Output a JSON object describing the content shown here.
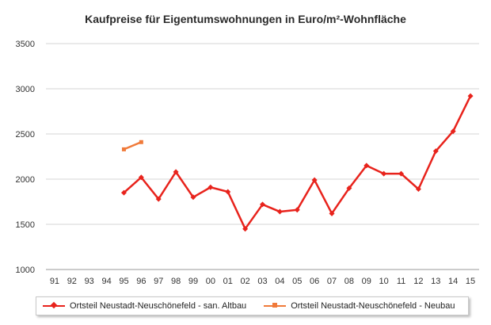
{
  "chart_data": {
    "type": "line",
    "title": "Kaufpreise für Eigentumswohnungen  in Euro/m²-Wohnfläche",
    "xlabel": "",
    "ylabel": "",
    "categories": [
      "91",
      "92",
      "93",
      "94",
      "95",
      "96",
      "97",
      "98",
      "99",
      "00",
      "01",
      "02",
      "03",
      "04",
      "05",
      "06",
      "07",
      "08",
      "09",
      "10",
      "11",
      "12",
      "13",
      "14",
      "15"
    ],
    "ylim": [
      1000,
      3500
    ],
    "yticks": [
      1000,
      1500,
      2000,
      2500,
      3000,
      3500
    ],
    "grid": true,
    "legend_position": "bottom",
    "series": [
      {
        "name": "Ortsteil Neustadt-Neuschönefeld - san. Altbau",
        "color": "#e8231c",
        "marker": "diamond",
        "values": [
          null,
          null,
          null,
          null,
          1850,
          2020,
          1780,
          2080,
          1800,
          1910,
          1860,
          1450,
          1720,
          1640,
          1660,
          1990,
          1620,
          1900,
          2150,
          2060,
          2060,
          1890,
          2310,
          2530,
          2920
        ]
      },
      {
        "name": "Ortsteil Neustadt-Neuschönefeld - Neubau",
        "color": "#f07a3a",
        "marker": "square",
        "values": [
          null,
          null,
          null,
          null,
          2330,
          2410,
          null,
          null,
          null,
          null,
          null,
          null,
          null,
          null,
          null,
          null,
          null,
          null,
          null,
          null,
          null,
          null,
          null,
          null,
          null
        ]
      }
    ]
  }
}
